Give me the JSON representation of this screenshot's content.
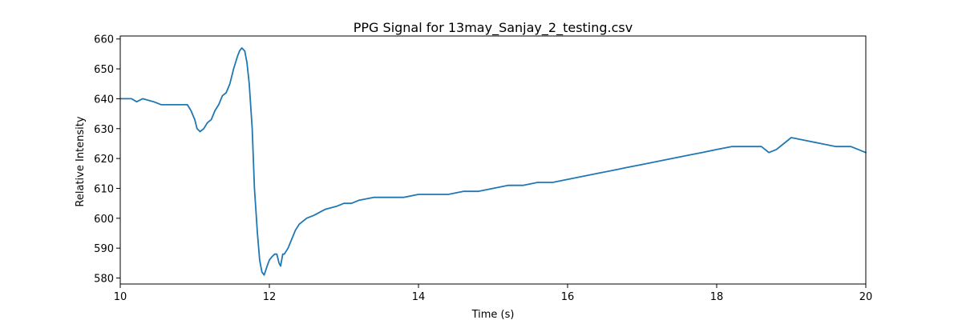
{
  "chart_data": {
    "type": "line",
    "title": "PPG Signal for 13may_Sanjay_2_testing.csv",
    "xlabel": "Time (s)",
    "ylabel": "Relative Intensity",
    "xlim": [
      10,
      20
    ],
    "ylim": [
      578,
      661
    ],
    "xticks": [
      10,
      12,
      14,
      16,
      18,
      20
    ],
    "yticks": [
      580,
      590,
      600,
      610,
      620,
      630,
      640,
      650,
      660
    ],
    "grid": false,
    "colors": {
      "series": "#1f77b4"
    },
    "series": [
      {
        "x": [
          10.0,
          10.15,
          10.22,
          10.3,
          10.45,
          10.55,
          10.65,
          10.8,
          10.9,
          10.95,
          11.0,
          11.03,
          11.07,
          11.12,
          11.17,
          11.22,
          11.27,
          11.32,
          11.37,
          11.42,
          11.47,
          11.52,
          11.57,
          11.6,
          11.63,
          11.67,
          11.7,
          11.73,
          11.77,
          11.8,
          11.84,
          11.87,
          11.9,
          11.93,
          11.97,
          12.0,
          12.03,
          12.07,
          12.1,
          12.13,
          12.15,
          12.18,
          12.2,
          12.25,
          12.3,
          12.35,
          12.4,
          12.5,
          12.6,
          12.75,
          12.9,
          13.0,
          13.1,
          13.2,
          13.4,
          13.6,
          13.8,
          14.0,
          14.2,
          14.4,
          14.6,
          14.8,
          15.0,
          15.2,
          15.4,
          15.6,
          15.8,
          16.0,
          16.2,
          16.4,
          16.6,
          16.8,
          17.0,
          17.2,
          17.4,
          17.6,
          17.8,
          18.0,
          18.2,
          18.4,
          18.6,
          18.7,
          18.8,
          18.9,
          19.0,
          19.2,
          19.4,
          19.6,
          19.8,
          19.9,
          20.0
        ],
        "y": [
          640,
          640,
          639,
          640,
          639,
          638,
          638,
          638,
          638,
          636,
          633,
          630,
          629,
          630,
          632,
          633,
          636,
          638,
          641,
          642,
          645,
          650,
          654,
          656,
          657,
          656,
          652,
          645,
          630,
          610,
          595,
          586,
          582,
          581,
          584,
          586,
          587,
          588,
          588,
          585,
          584,
          588,
          588,
          590,
          593,
          596,
          598,
          600,
          601,
          603,
          604,
          605,
          605,
          606,
          607,
          607,
          607,
          608,
          608,
          608,
          609,
          609,
          610,
          611,
          611,
          612,
          612,
          613,
          614,
          615,
          616,
          617,
          618,
          619,
          620,
          621,
          622,
          623,
          624,
          624,
          624,
          622,
          623,
          625,
          627,
          626,
          625,
          624,
          624,
          623,
          622
        ]
      }
    ]
  }
}
